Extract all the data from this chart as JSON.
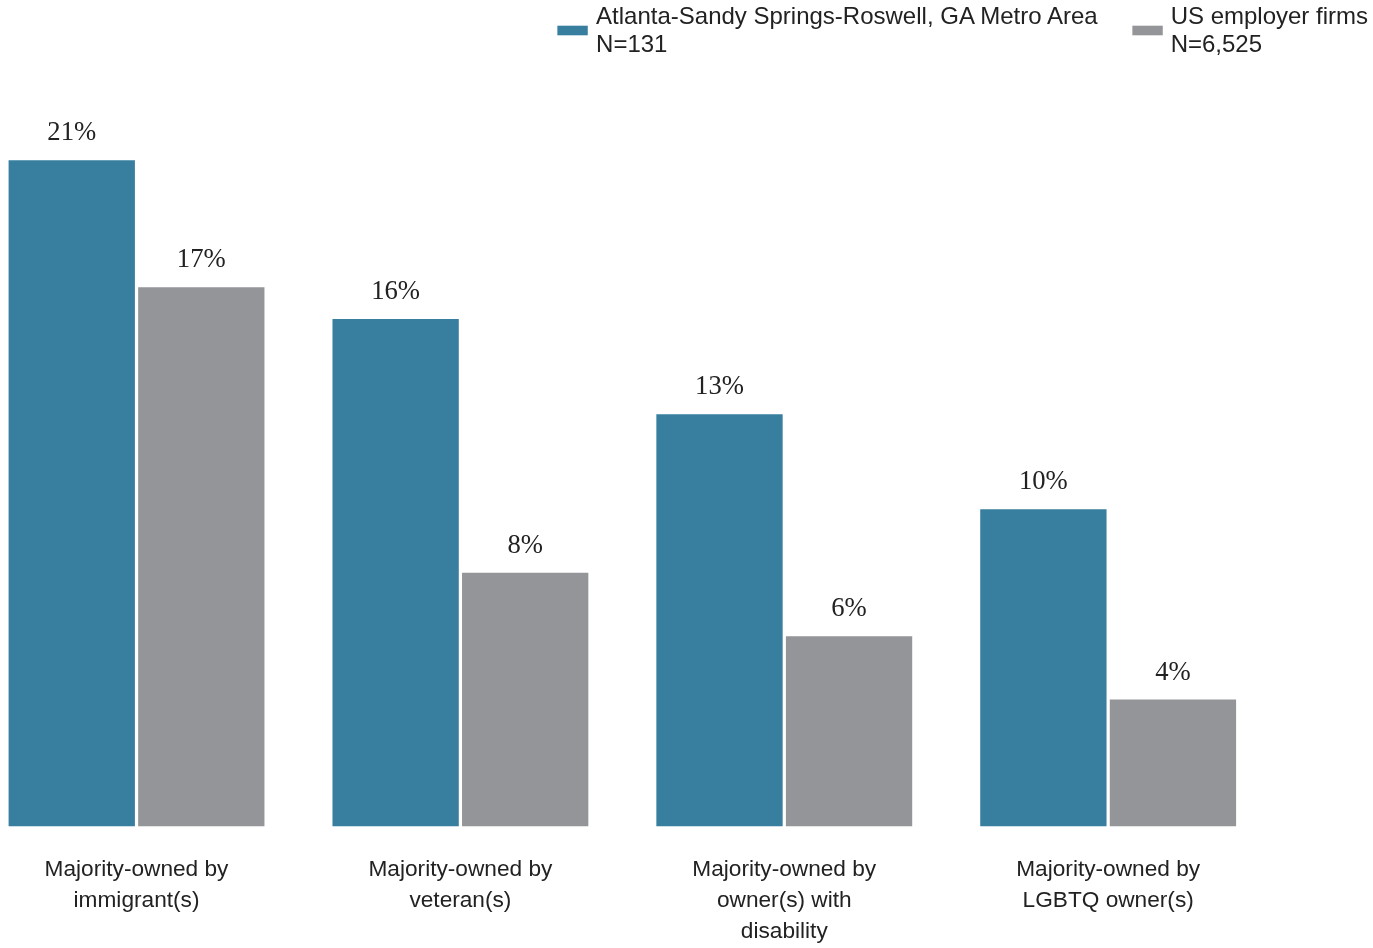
{
  "chart_data": {
    "type": "bar",
    "categories": [
      "Majority-owned by immigrant(s)",
      "Majority-owned by veteran(s)",
      "Majority-owned by owner(s) with disability",
      "Majority-owned by LGBTQ owner(s)"
    ],
    "series": [
      {
        "name": "Atlanta-Sandy Springs-Roswell, GA Metro Area\nN=131",
        "color": "#377e9f",
        "values": [
          21,
          16,
          13,
          10
        ],
        "value_labels": [
          "21%",
          "16%",
          "13%",
          "10%"
        ]
      },
      {
        "name": "US employer firms\nN=6,525",
        "color": "#939598",
        "values": [
          17,
          8,
          6,
          4
        ],
        "value_labels": [
          "17%",
          "8%",
          "6%",
          "4%"
        ]
      }
    ],
    "legend": "top right",
    "grid": false,
    "tick_labels": "x"
  }
}
